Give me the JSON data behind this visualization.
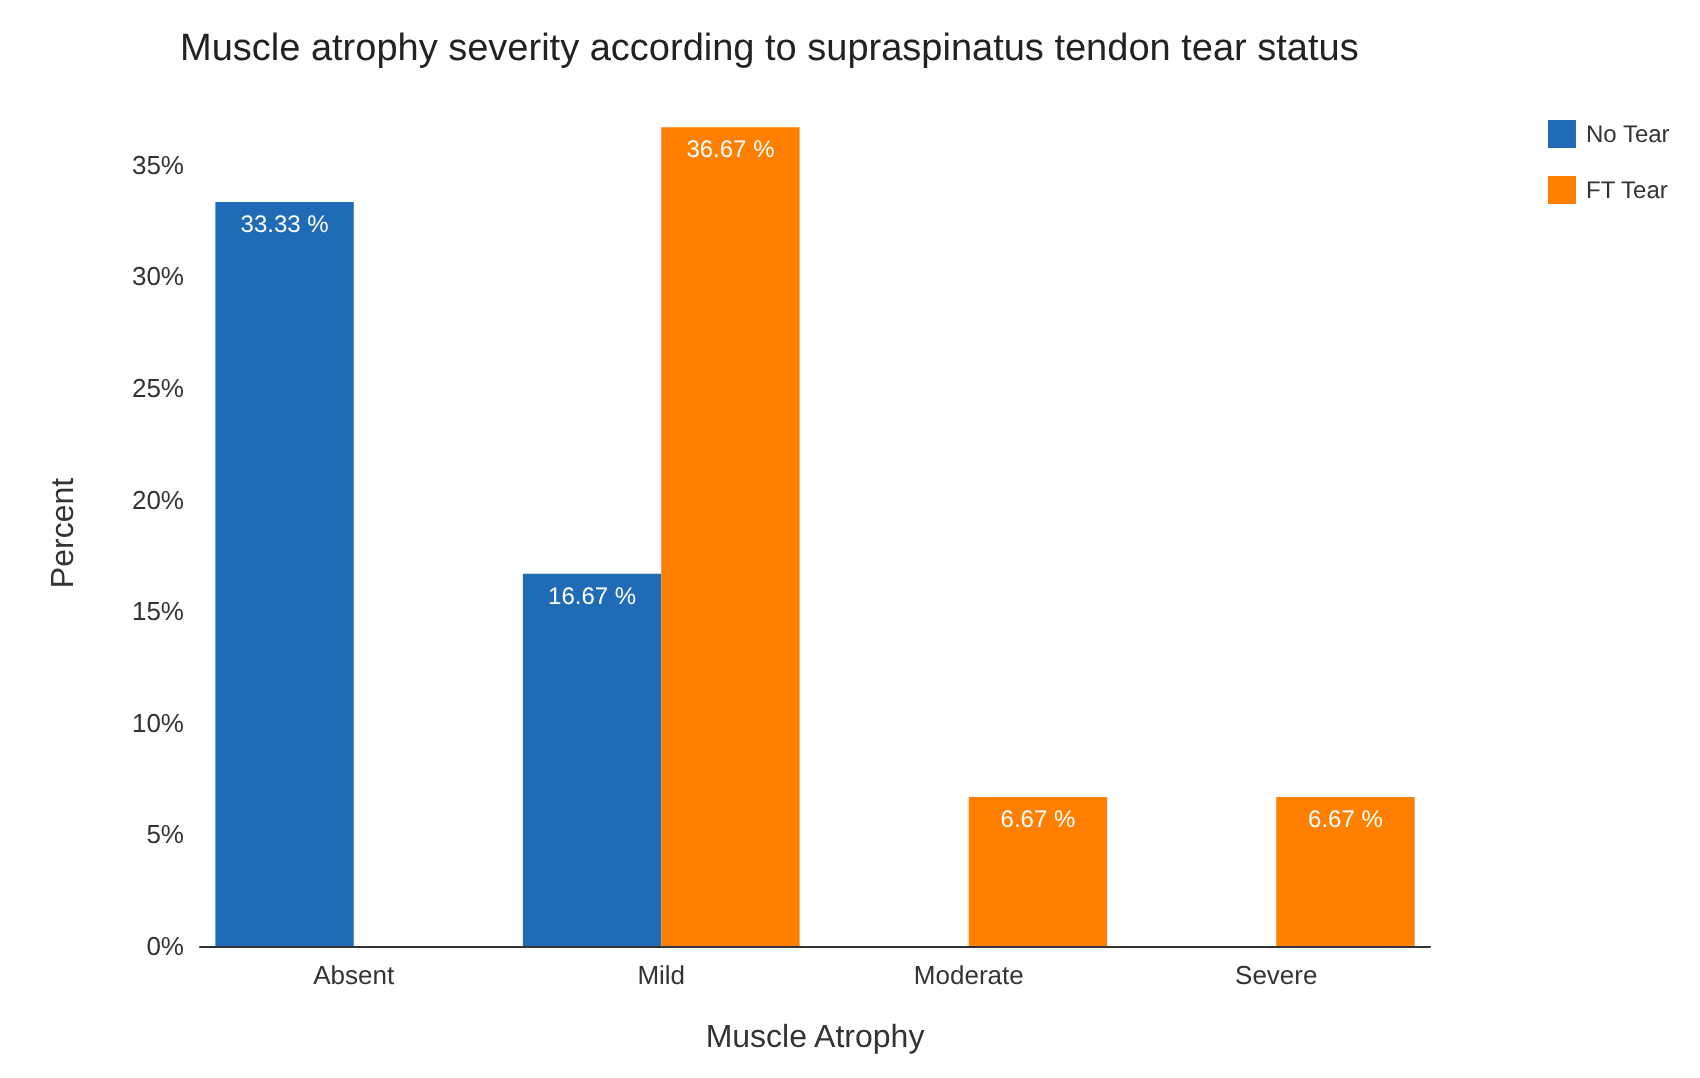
{
  "chart_data": {
    "type": "bar",
    "title": "Muscle atrophy severity according to supraspinatus tendon tear status",
    "xlabel": "Muscle Atrophy",
    "ylabel": "Percent",
    "categories": [
      "Absent",
      "Mild",
      "Moderate",
      "Severe"
    ],
    "series": [
      {
        "name": "No Tear",
        "color": "#1f6bb5",
        "values": [
          33.33,
          16.67,
          0,
          0
        ],
        "value_labels": [
          "33.33 %",
          "16.67 %",
          null,
          null
        ]
      },
      {
        "name": "FT Tear",
        "color": "#ff7f00",
        "values": [
          0,
          36.67,
          6.67,
          6.67
        ],
        "value_labels": [
          null,
          "36.67 %",
          "6.67 %",
          "6.67 %"
        ]
      }
    ],
    "ylim": [
      0,
      37
    ],
    "yticks": [
      {
        "value": 0,
        "label": "0%"
      },
      {
        "value": 5,
        "label": "5%"
      },
      {
        "value": 10,
        "label": "10%"
      },
      {
        "value": 15,
        "label": "15%"
      },
      {
        "value": 20,
        "label": "20%"
      },
      {
        "value": 25,
        "label": "25%"
      },
      {
        "value": 30,
        "label": "30%"
      },
      {
        "value": 35,
        "label": "35%"
      }
    ],
    "grid": false,
    "legend": "top right"
  }
}
